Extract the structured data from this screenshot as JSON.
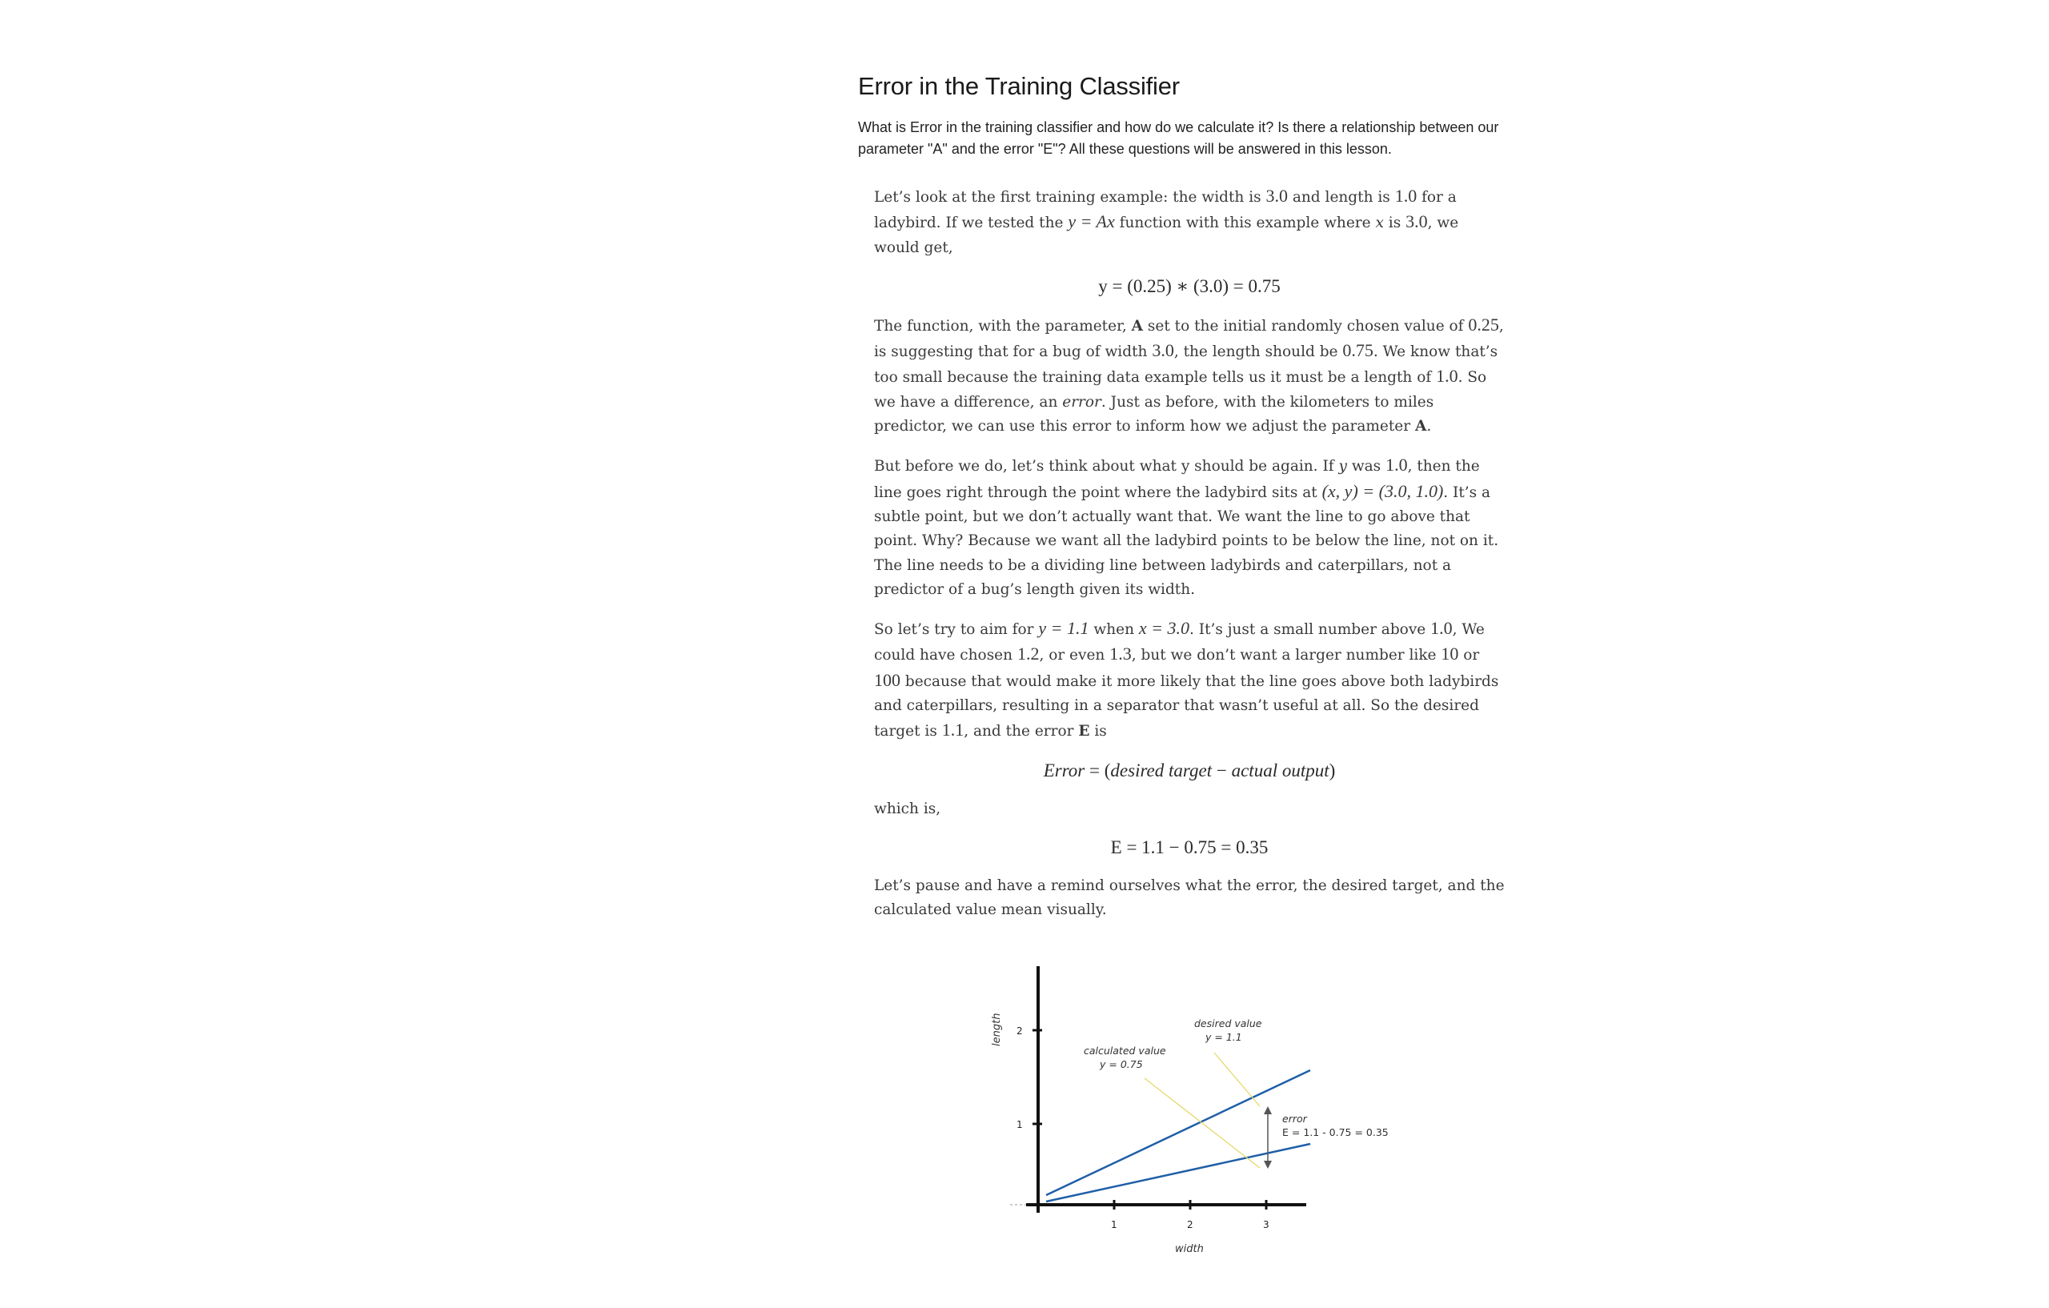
{
  "lesson": {
    "title": "Error in the Training Classifier",
    "subtitle": "What is Error in the training classifier and how do we calculate it? Is there a relationship between our parameter \"A\" and the error \"E\"? All these questions will be answered in this lesson."
  },
  "article": {
    "p1": {
      "t1": "Let’s look at the first training example: the width is ",
      "m1": "3.0",
      "t2": " and length is ",
      "m2": "1.0",
      "t3": " for a ladybird. If we tested the ",
      "m3": "y = Ax",
      "t4": " function with this example where ",
      "t5": "x",
      "t6": " is ",
      "m4": "3.0",
      "t7": ", we would get,"
    },
    "eq1": "y = (0.25) ∗ (3.0) = 0.75",
    "p2": {
      "t1": "The function, with the parameter, ",
      "b1": "A",
      "t2": " set to the initial randomly chosen value of ",
      "m1": "0.25",
      "t3": ", is suggesting that for a bug of width ",
      "m2": "3.0",
      "t4": ", the length should be ",
      "m3": "0.75",
      "t5": ". We know that’s too small because the training data example tells us it must be a length of ",
      "m4": "1.0",
      "t6": ". So we have a difference, an ",
      "e1": "error",
      "t7": ". Just as before, with the kilometers to miles predictor, we can use this error to inform how we adjust the parameter ",
      "b2": "A",
      "t8": "."
    },
    "p3": {
      "t1": "But before we do, let’s think about what y should be again. If ",
      "e1": "y",
      "t2": " was ",
      "m1": "1.0",
      "t3": ", then the line goes right through the point where the ladybird sits at ",
      "m2": "(x, y) = (3.0, 1.0)",
      "t4": ". It’s a subtle point, but we don’t actually want that. We want the line to go above that point. Why? Because we want all the ladybird points to be below the line, not on it. The line needs to be a dividing line between ladybirds and caterpillars, not a predictor of a bug’s length given its width."
    },
    "p4": {
      "t1": "So let’s try to aim for ",
      "m1": "y = 1.1",
      "t2": " when ",
      "m2": "x = 3.0",
      "t3": ". It’s just a small number above ",
      "m3": "1.0",
      "t4": ", We could have chosen ",
      "m4": "1.2",
      "t5": ", or even ",
      "m5": "1.3",
      "t6": ", but we don’t want a larger number like ",
      "m6": "10",
      "t7": " or ",
      "m7": "100",
      "t8": " because that would make it more likely that the line goes above both ladybirds and caterpillars, resulting in a separator that wasn’t useful at all. So the desired target is ",
      "m8": "1.1",
      "t9": ", and the error ",
      "b1": "E",
      "t10": " is"
    },
    "eq2": {
      "lhs": "Error",
      "eq": " = (",
      "a": "desired target",
      "minus": " − ",
      "b": "actual output",
      "close": ")"
    },
    "p5": "which is,",
    "eq3": "E = 1.1 − 0.75 = 0.35",
    "p6": "Let’s pause and have a remind ourselves what the error, the desired target, and the calculated value mean visually."
  },
  "figure": {
    "xlabel": "width",
    "ylabel": "length",
    "x_ticks": [
      "1",
      "2",
      "3"
    ],
    "y_ticks": [
      "1",
      "2"
    ],
    "calc_label_1": "calculated value",
    "calc_label_2": "y = 0.75",
    "desired_label_1": "desired value",
    "desired_label_2": "y = 1.1",
    "error_label_1": "error",
    "error_label_2": "E = 1.1 - 0.75 = 0.35",
    "line_color": "#1f5fa8",
    "pointer_color": "#e6d96a"
  }
}
